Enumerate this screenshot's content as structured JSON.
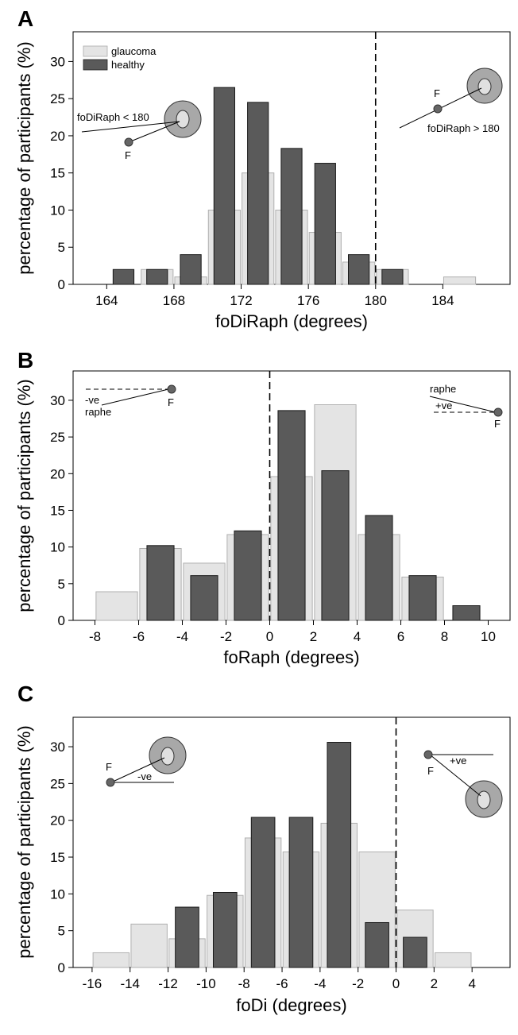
{
  "chart_data": [
    {
      "panel": "A",
      "type": "bar",
      "xlabel": "foDiRaph (degrees)",
      "ylabel": "percentage of participants (%)",
      "xlim": [
        162,
        188
      ],
      "ylim": [
        0,
        34
      ],
      "xticks": [
        164,
        168,
        172,
        176,
        180,
        184
      ],
      "yticks": [
        0,
        5,
        10,
        15,
        20,
        25,
        30
      ],
      "bin_width": 2,
      "vline": 180,
      "legend": {
        "position": "top-left",
        "entries": [
          {
            "name": "glaucoma",
            "color": "#e4e4e4"
          },
          {
            "name": "healthy",
            "color": "#5a5a5a"
          }
        ]
      },
      "series": [
        {
          "name": "glaucoma",
          "color": "#e4e4e4",
          "x": [
            165,
            167,
            169,
            171,
            173,
            175,
            177,
            179,
            181,
            185
          ],
          "values": [
            0,
            2,
            1,
            10,
            15,
            10,
            7,
            3,
            2,
            1
          ]
        },
        {
          "name": "healthy",
          "color": "#5a5a5a",
          "x": [
            165,
            167,
            169,
            171,
            173,
            175,
            177,
            179,
            181
          ],
          "values": [
            2,
            2,
            4,
            26.5,
            24.5,
            18.3,
            16.3,
            4,
            2
          ]
        }
      ],
      "annotations": [
        {
          "text": "foDiRaph < 180"
        },
        {
          "text": "F"
        },
        {
          "text": "F"
        },
        {
          "text": "foDiRaph > 180"
        }
      ]
    },
    {
      "panel": "B",
      "type": "bar",
      "xlabel": "foRaph (degrees)",
      "ylabel": "percentage of participants (%)",
      "xlim": [
        -9,
        11
      ],
      "ylim": [
        0,
        34
      ],
      "xticks": [
        -8,
        -6,
        -4,
        -2,
        0,
        2,
        4,
        6,
        8,
        10
      ],
      "yticks": [
        0,
        5,
        10,
        15,
        20,
        25,
        30
      ],
      "bin_width": 2,
      "vline": 0,
      "series": [
        {
          "name": "glaucoma",
          "color": "#e4e4e4",
          "x": [
            -7,
            -5,
            -3,
            -1,
            1,
            3,
            5,
            7
          ],
          "values": [
            3.9,
            9.8,
            7.8,
            11.7,
            19.6,
            29.4,
            11.7,
            5.9
          ]
        },
        {
          "name": "healthy",
          "color": "#5a5a5a",
          "x": [
            -5,
            -3,
            -1,
            1,
            3,
            5,
            7,
            9
          ],
          "values": [
            10.2,
            6.1,
            12.2,
            28.6,
            20.4,
            14.3,
            6.1,
            2
          ]
        }
      ],
      "annotations": [
        {
          "text": "-ve"
        },
        {
          "text": "raphe"
        },
        {
          "text": "F"
        },
        {
          "text": "raphe"
        },
        {
          "text": "+ve"
        },
        {
          "text": "F"
        }
      ]
    },
    {
      "panel": "C",
      "type": "bar",
      "xlabel": "foDi (degrees)",
      "ylabel": "percentage of participants (%)",
      "xlim": [
        -17,
        6
      ],
      "ylim": [
        0,
        34
      ],
      "xticks": [
        -16,
        -14,
        -12,
        -10,
        -8,
        -6,
        -4,
        -2,
        0,
        2,
        4
      ],
      "yticks": [
        0,
        5,
        10,
        15,
        20,
        25,
        30
      ],
      "bin_width": 2,
      "vline": 0,
      "series": [
        {
          "name": "glaucoma",
          "color": "#e4e4e4",
          "x": [
            -15,
            -13,
            -11,
            -9,
            -7,
            -5,
            -3,
            -1,
            1,
            3
          ],
          "values": [
            2,
            5.9,
            3.9,
            9.8,
            17.6,
            15.7,
            19.6,
            15.7,
            7.8,
            2
          ]
        },
        {
          "name": "healthy",
          "color": "#5a5a5a",
          "x": [
            -11,
            -9,
            -7,
            -5,
            -3,
            -1,
            1
          ],
          "values": [
            8.2,
            10.2,
            20.4,
            20.4,
            30.6,
            6.1,
            4.1
          ]
        }
      ],
      "annotations": [
        {
          "text": "F"
        },
        {
          "text": "-ve"
        },
        {
          "text": "+ve"
        },
        {
          "text": "F"
        }
      ]
    }
  ]
}
